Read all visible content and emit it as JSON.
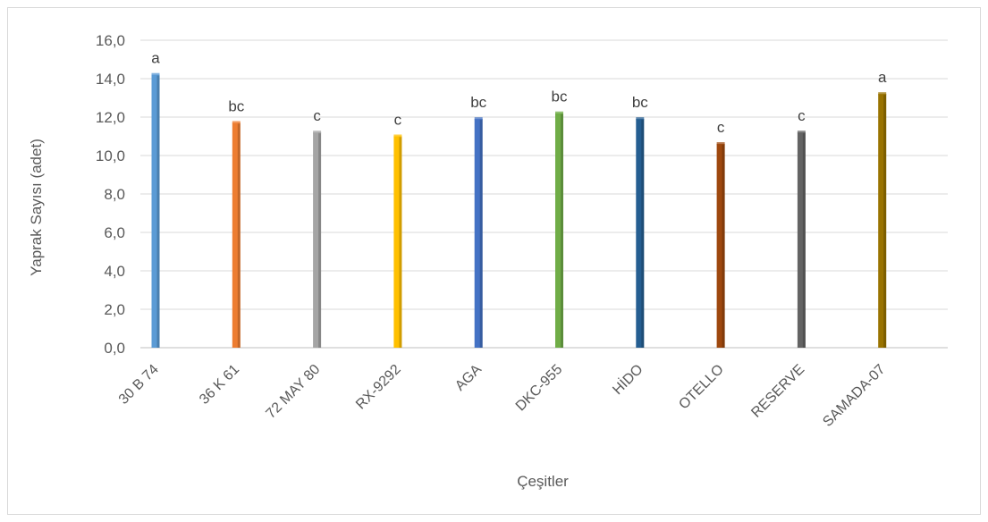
{
  "chart_data": {
    "type": "bar",
    "title": "",
    "xlabel": "Çeşitler",
    "ylabel": "Yaprak Sayısı (adet)",
    "ylim": [
      0,
      16
    ],
    "ytick_labels": [
      "0,0",
      "2,0",
      "4,0",
      "6,0",
      "8,0",
      "10,0",
      "12,0",
      "14,0",
      "16,0"
    ],
    "grid": true,
    "legend": "none",
    "categories": [
      "30 B 74",
      "36 K 61",
      "72 MAY 80",
      "RX-9292",
      "AGA",
      "DKC-955",
      "HİDO",
      "OTELLO",
      "RESERVE",
      "SAMADA-07"
    ],
    "values": [
      14.2,
      11.7,
      11.2,
      11.0,
      11.9,
      12.2,
      11.9,
      10.6,
      11.2,
      13.2
    ],
    "significance_letters": [
      "a",
      "bc",
      "c",
      "c",
      "bc",
      "bc",
      "bc",
      "c",
      "c",
      "a"
    ],
    "colors": [
      "#5b9bd5",
      "#ed7d31",
      "#a5a5a5",
      "#ffc000",
      "#4472c4",
      "#70ad47",
      "#255e91",
      "#9e480e",
      "#636363",
      "#997300"
    ]
  }
}
